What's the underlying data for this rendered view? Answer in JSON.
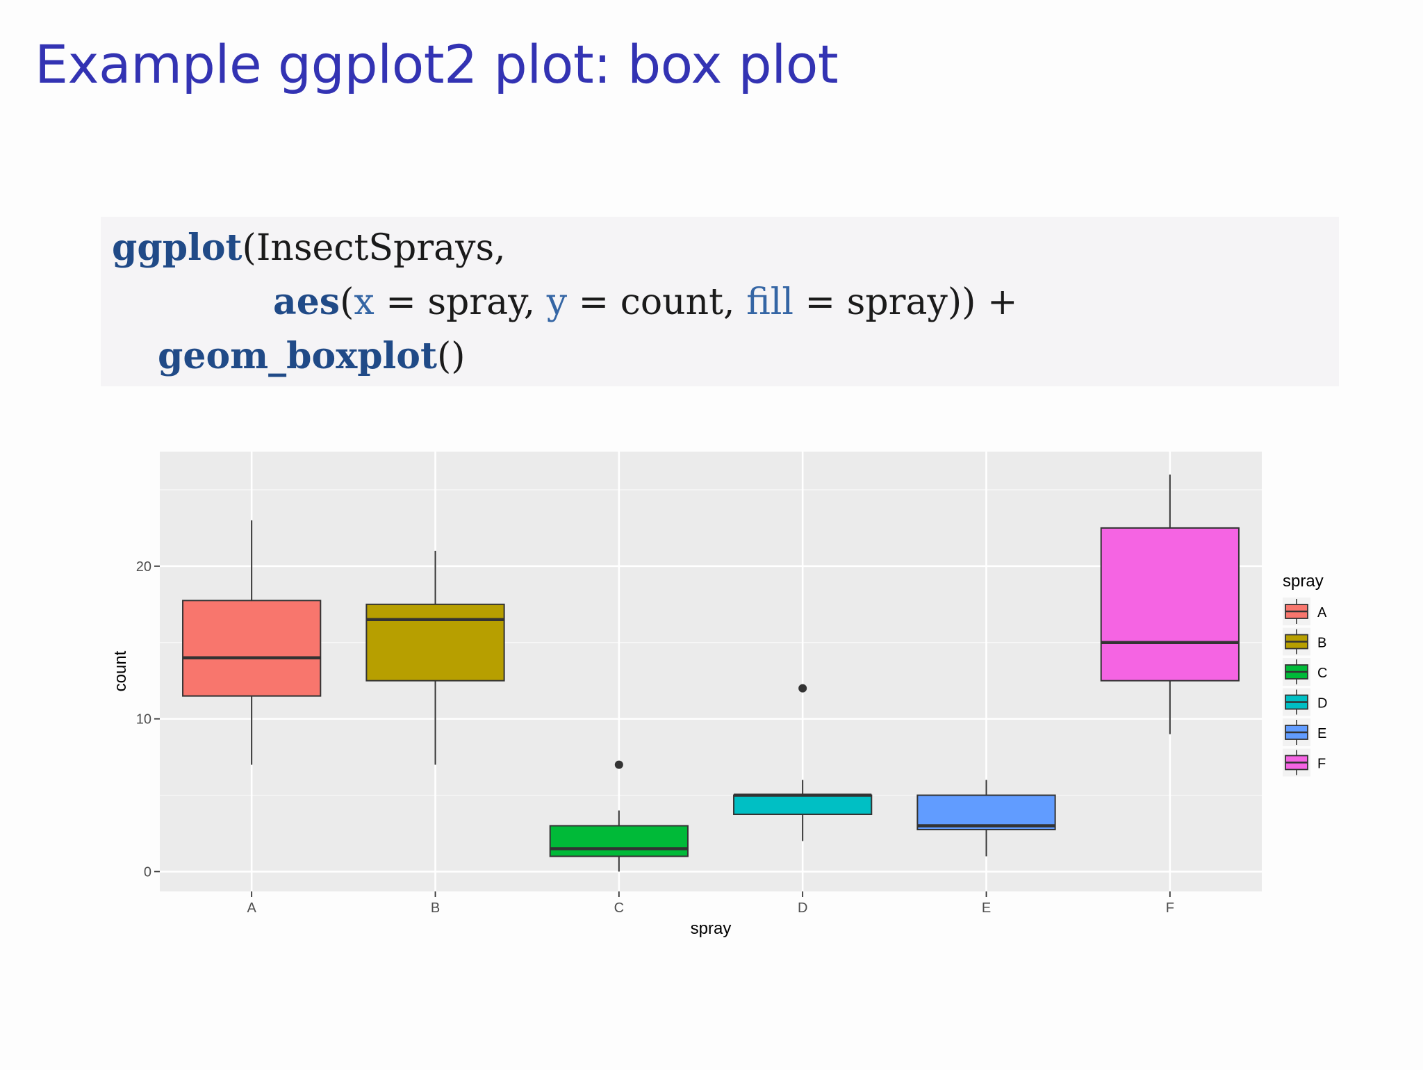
{
  "slide": {
    "title": "Example ggplot2 plot: box plot"
  },
  "code": {
    "line1": {
      "fn": "ggplot",
      "rest": "(InsectSprays,"
    },
    "line2": {
      "fn": "aes",
      "open": "(",
      "x_arg": "x",
      "eq1": " = spray, ",
      "y_arg": "y",
      "eq2": " = count, ",
      "fill_arg": "fill",
      "eq3": " = spray)) +"
    },
    "line3": {
      "fn": "geom_boxplot",
      "rest": "()"
    }
  },
  "chart_data": {
    "type": "boxplot",
    "xlabel": "spray",
    "ylabel": "count",
    "ylim": [
      -1.3,
      27.5
    ],
    "yticks": [
      0,
      10,
      20
    ],
    "grid": true,
    "legend": {
      "title": "spray",
      "placement": "right"
    },
    "categories": [
      "A",
      "B",
      "C",
      "D",
      "E",
      "F"
    ],
    "boxes": [
      {
        "label": "A",
        "min": 7,
        "q1": 11.5,
        "median": 14,
        "q3": 17.75,
        "max": 23,
        "outliers": [],
        "color": "#F8766D"
      },
      {
        "label": "B",
        "min": 7,
        "q1": 12.5,
        "median": 16.5,
        "q3": 17.5,
        "max": 21,
        "outliers": [],
        "color": "#B79F00"
      },
      {
        "label": "C",
        "min": 0,
        "q1": 1,
        "median": 1.5,
        "q3": 3,
        "max": 4,
        "outliers": [
          7
        ],
        "color": "#00BA38"
      },
      {
        "label": "D",
        "min": 2,
        "q1": 3.75,
        "median": 5,
        "q3": 5,
        "max": 6,
        "outliers": [
          12
        ],
        "color": "#00BFC4"
      },
      {
        "label": "E",
        "min": 1,
        "q1": 2.75,
        "median": 3,
        "q3": 5,
        "max": 6,
        "outliers": [],
        "color": "#619CFF"
      },
      {
        "label": "F",
        "min": 9,
        "q1": 12.5,
        "median": 15,
        "q3": 22.5,
        "max": 26,
        "outliers": [],
        "color": "#F564E3"
      }
    ]
  }
}
